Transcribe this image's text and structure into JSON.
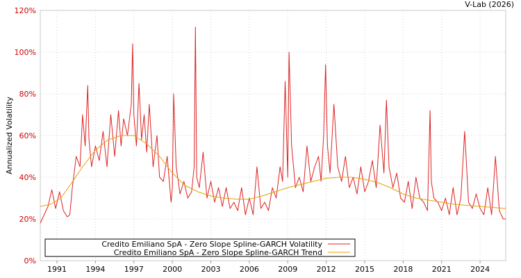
{
  "credit": "V-Lab (2026)",
  "chart_data": {
    "type": "line",
    "title": "",
    "xlabel": "",
    "ylabel": "Annualized Volatility",
    "xlim": [
      1989.7,
      2026.0
    ],
    "ylim": [
      0,
      120
    ],
    "y_tick_values": [
      0,
      20,
      40,
      60,
      80,
      100,
      120
    ],
    "y_tick_labels": [
      "0%",
      "20%",
      "40%",
      "60%",
      "80%",
      "100%",
      "120%"
    ],
    "x_tick_values": [
      1991,
      1994,
      1997,
      2000,
      2003,
      2006,
      2009,
      2012,
      2015,
      2018,
      2021,
      2024
    ],
    "x_tick_labels": [
      "1991",
      "1994",
      "1997",
      "2000",
      "2003",
      "2006",
      "2009",
      "2012",
      "2015",
      "2018",
      "2021",
      "2024"
    ],
    "grid": true,
    "legend_position": "bottom-left",
    "series": [
      {
        "name": "Credito Emiliano SpA - Zero Slope Spline-GARCH Volatility",
        "color": "#dd2222",
        "x": [
          1989.7,
          1990.0,
          1990.3,
          1990.6,
          1990.9,
          1991.2,
          1991.5,
          1991.8,
          1992.0,
          1992.2,
          1992.5,
          1992.8,
          1993.0,
          1993.2,
          1993.4,
          1993.5,
          1993.7,
          1994.0,
          1994.3,
          1994.6,
          1994.9,
          1995.2,
          1995.5,
          1995.8,
          1996.0,
          1996.2,
          1996.5,
          1996.8,
          1996.9,
          1997.0,
          1997.2,
          1997.4,
          1997.6,
          1997.8,
          1998.0,
          1998.2,
          1998.5,
          1998.8,
          1999.0,
          1999.3,
          1999.6,
          1999.9,
          2000.0,
          2000.1,
          2000.3,
          2000.6,
          2000.9,
          2001.2,
          2001.5,
          2001.7,
          2001.8,
          2001.9,
          2002.1,
          2002.4,
          2002.7,
          2003.0,
          2003.3,
          2003.6,
          2003.9,
          2004.2,
          2004.5,
          2004.8,
          2005.1,
          2005.4,
          2005.7,
          2006.0,
          2006.3,
          2006.6,
          2006.9,
          2007.2,
          2007.5,
          2007.8,
          2008.1,
          2008.4,
          2008.6,
          2008.8,
          2009.0,
          2009.1,
          2009.3,
          2009.6,
          2009.9,
          2010.2,
          2010.5,
          2010.8,
          2011.1,
          2011.4,
          2011.6,
          2011.8,
          2011.95,
          2012.1,
          2012.3,
          2012.6,
          2012.9,
          2013.2,
          2013.5,
          2013.8,
          2014.1,
          2014.4,
          2014.7,
          2015.0,
          2015.3,
          2015.6,
          2015.9,
          2016.2,
          2016.5,
          2016.7,
          2016.9,
          2017.2,
          2017.5,
          2017.8,
          2018.1,
          2018.4,
          2018.7,
          2019.0,
          2019.3,
          2019.6,
          2019.9,
          2020.1,
          2020.2,
          2020.4,
          2020.7,
          2021.0,
          2021.3,
          2021.6,
          2021.9,
          2022.2,
          2022.5,
          2022.8,
          2023.1,
          2023.4,
          2023.7,
          2024.0,
          2024.3,
          2024.6,
          2024.9,
          2025.2,
          2025.5,
          2025.8,
          2026.0
        ],
        "values": [
          18,
          22,
          26,
          34,
          25,
          33,
          24,
          21,
          22,
          35,
          50,
          45,
          70,
          55,
          84,
          58,
          45,
          55,
          48,
          62,
          45,
          70,
          50,
          72,
          55,
          68,
          60,
          75,
          104,
          70,
          55,
          85,
          58,
          70,
          52,
          75,
          45,
          60,
          40,
          38,
          50,
          28,
          35,
          80,
          45,
          32,
          38,
          30,
          33,
          45,
          112,
          40,
          35,
          52,
          30,
          38,
          28,
          35,
          26,
          35,
          25,
          28,
          24,
          35,
          22,
          30,
          22,
          45,
          25,
          28,
          24,
          35,
          30,
          45,
          38,
          86,
          40,
          100,
          55,
          35,
          40,
          33,
          55,
          38,
          45,
          50,
          38,
          60,
          94,
          55,
          42,
          75,
          45,
          38,
          50,
          35,
          40,
          32,
          45,
          33,
          38,
          48,
          35,
          65,
          42,
          77,
          45,
          35,
          42,
          30,
          28,
          38,
          25,
          40,
          30,
          28,
          24,
          72,
          38,
          30,
          28,
          24,
          30,
          22,
          35,
          22,
          30,
          62,
          28,
          25,
          32,
          25,
          22,
          35,
          22,
          50,
          24,
          20,
          20
        ]
      },
      {
        "name": "Credito Emiliano SpA - Zero Slope Spline-GARCH Trend",
        "color": "#e8a000",
        "x": [
          1989.7,
          1990.5,
          1991.3,
          1992.0,
          1993.0,
          1994.0,
          1995.0,
          1996.0,
          1997.0,
          1998.0,
          1999.0,
          2000.0,
          2001.0,
          2002.0,
          2003.0,
          2004.0,
          2005.0,
          2006.0,
          2007.0,
          2008.0,
          2009.0,
          2010.0,
          2011.0,
          2012.0,
          2013.0,
          2014.0,
          2015.0,
          2016.0,
          2017.0,
          2018.0,
          2019.0,
          2020.0,
          2021.0,
          2022.0,
          2023.0,
          2024.0,
          2025.0,
          2026.0
        ],
        "values": [
          26,
          27,
          30,
          36,
          45,
          53,
          58,
          60,
          60,
          56,
          50,
          42,
          36,
          33,
          31,
          30,
          29.5,
          29.5,
          31,
          33,
          35,
          36.5,
          38,
          39.5,
          40,
          40,
          39,
          37.5,
          35,
          32,
          30,
          29,
          28,
          27,
          26.5,
          26,
          25.5,
          25
        ]
      }
    ]
  }
}
